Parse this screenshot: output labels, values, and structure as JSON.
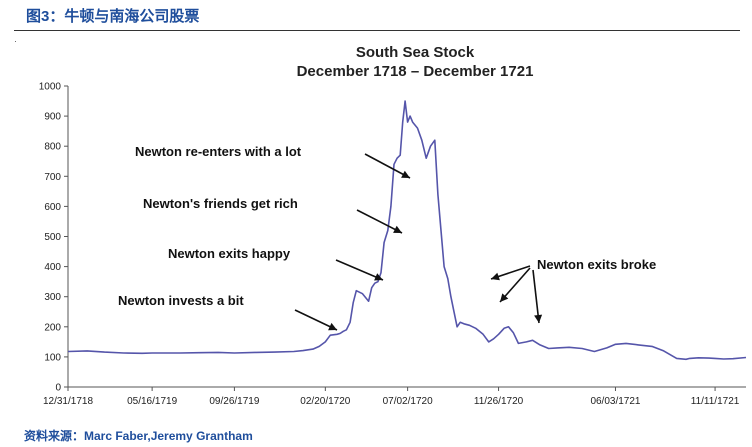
{
  "figure": {
    "title": "图3：牛顿与南海公司股票",
    "source": "资料来源：Marc Faber,Jeremy Grantham"
  },
  "chart_data": {
    "type": "line",
    "title": "South Sea Stock",
    "subtitle": "December 1718 – December 1721",
    "xlabel": "",
    "ylabel": "",
    "x_ticks": [
      "12/31/1718",
      "05/16/1719",
      "09/26/1719",
      "02/20/1720",
      "07/02/1720",
      "11/26/1720",
      "06/03/1721",
      "11/11/1721"
    ],
    "y_ticks": [
      0,
      100,
      200,
      300,
      400,
      500,
      600,
      700,
      800,
      900,
      1000
    ],
    "ylim": [
      0,
      1000
    ],
    "grid": false,
    "x": [
      "1718-12-31",
      "1719-01-31",
      "1719-02-28",
      "1719-03-31",
      "1719-04-30",
      "1719-05-16",
      "1719-06-30",
      "1719-07-31",
      "1719-08-31",
      "1719-09-26",
      "1719-10-31",
      "1719-11-30",
      "1719-12-31",
      "1720-01-15",
      "1720-01-31",
      "1720-02-10",
      "1720-02-20",
      "1720-02-28",
      "1720-03-10",
      "1720-03-15",
      "1720-03-20",
      "1720-03-25",
      "1720-03-31",
      "1720-04-05",
      "1720-04-10",
      "1720-04-20",
      "1720-04-30",
      "1720-05-05",
      "1720-05-10",
      "1720-05-15",
      "1720-05-20",
      "1720-05-25",
      "1720-05-31",
      "1720-06-05",
      "1720-06-10",
      "1720-06-15",
      "1720-06-20",
      "1720-06-24",
      "1720-06-28",
      "1720-07-02",
      "1720-07-06",
      "1720-07-10",
      "1720-07-18",
      "1720-07-25",
      "1720-08-01",
      "1720-08-08",
      "1720-08-15",
      "1720-08-20",
      "1720-08-25",
      "1720-08-30",
      "1720-09-05",
      "1720-09-10",
      "1720-09-15",
      "1720-09-20",
      "1720-09-25",
      "1720-10-01",
      "1720-10-10",
      "1720-10-20",
      "1720-11-01",
      "1720-11-10",
      "1720-11-18",
      "1720-11-26",
      "1720-12-05",
      "1720-12-12",
      "1720-12-20",
      "1720-12-28",
      "1721-01-10",
      "1721-01-20",
      "1721-02-01",
      "1721-02-15",
      "1721-03-01",
      "1721-03-20",
      "1721-04-10",
      "1721-04-30",
      "1721-05-20",
      "1721-06-03",
      "1721-06-20",
      "1721-07-10",
      "1721-08-01",
      "1721-08-20",
      "1721-09-10",
      "1721-09-25",
      "1721-10-01",
      "1721-10-15",
      "1721-11-01",
      "1721-11-11",
      "1721-11-25",
      "1721-12-10",
      "1721-12-31"
    ],
    "series": [
      {
        "values": [
          118,
          120,
          116,
          113,
          112,
          113,
          113,
          114,
          115,
          113,
          115,
          116,
          118,
          121,
          126,
          135,
          150,
          172,
          175,
          178,
          185,
          190,
          215,
          280,
          320,
          310,
          285,
          330,
          345,
          350,
          380,
          480,
          520,
          600,
          740,
          760,
          770,
          880,
          950,
          880,
          900,
          880,
          860,
          820,
          760,
          800,
          820,
          640,
          520,
          400,
          360,
          300,
          250,
          200,
          215,
          210,
          205,
          195,
          175,
          150,
          160,
          175,
          195,
          200,
          180,
          145,
          150,
          155,
          140,
          128,
          130,
          132,
          128,
          118,
          130,
          142,
          145,
          140,
          135,
          120,
          95,
          92,
          95,
          97,
          96,
          95,
          93,
          94,
          98
        ]
      }
    ],
    "annotations": [
      "Newton invests a bit",
      "Newton exits happy",
      "Newton's friends get rich",
      "Newton re-enters with a lot",
      "Newton exits broke"
    ],
    "line_color": "#5555aa"
  }
}
